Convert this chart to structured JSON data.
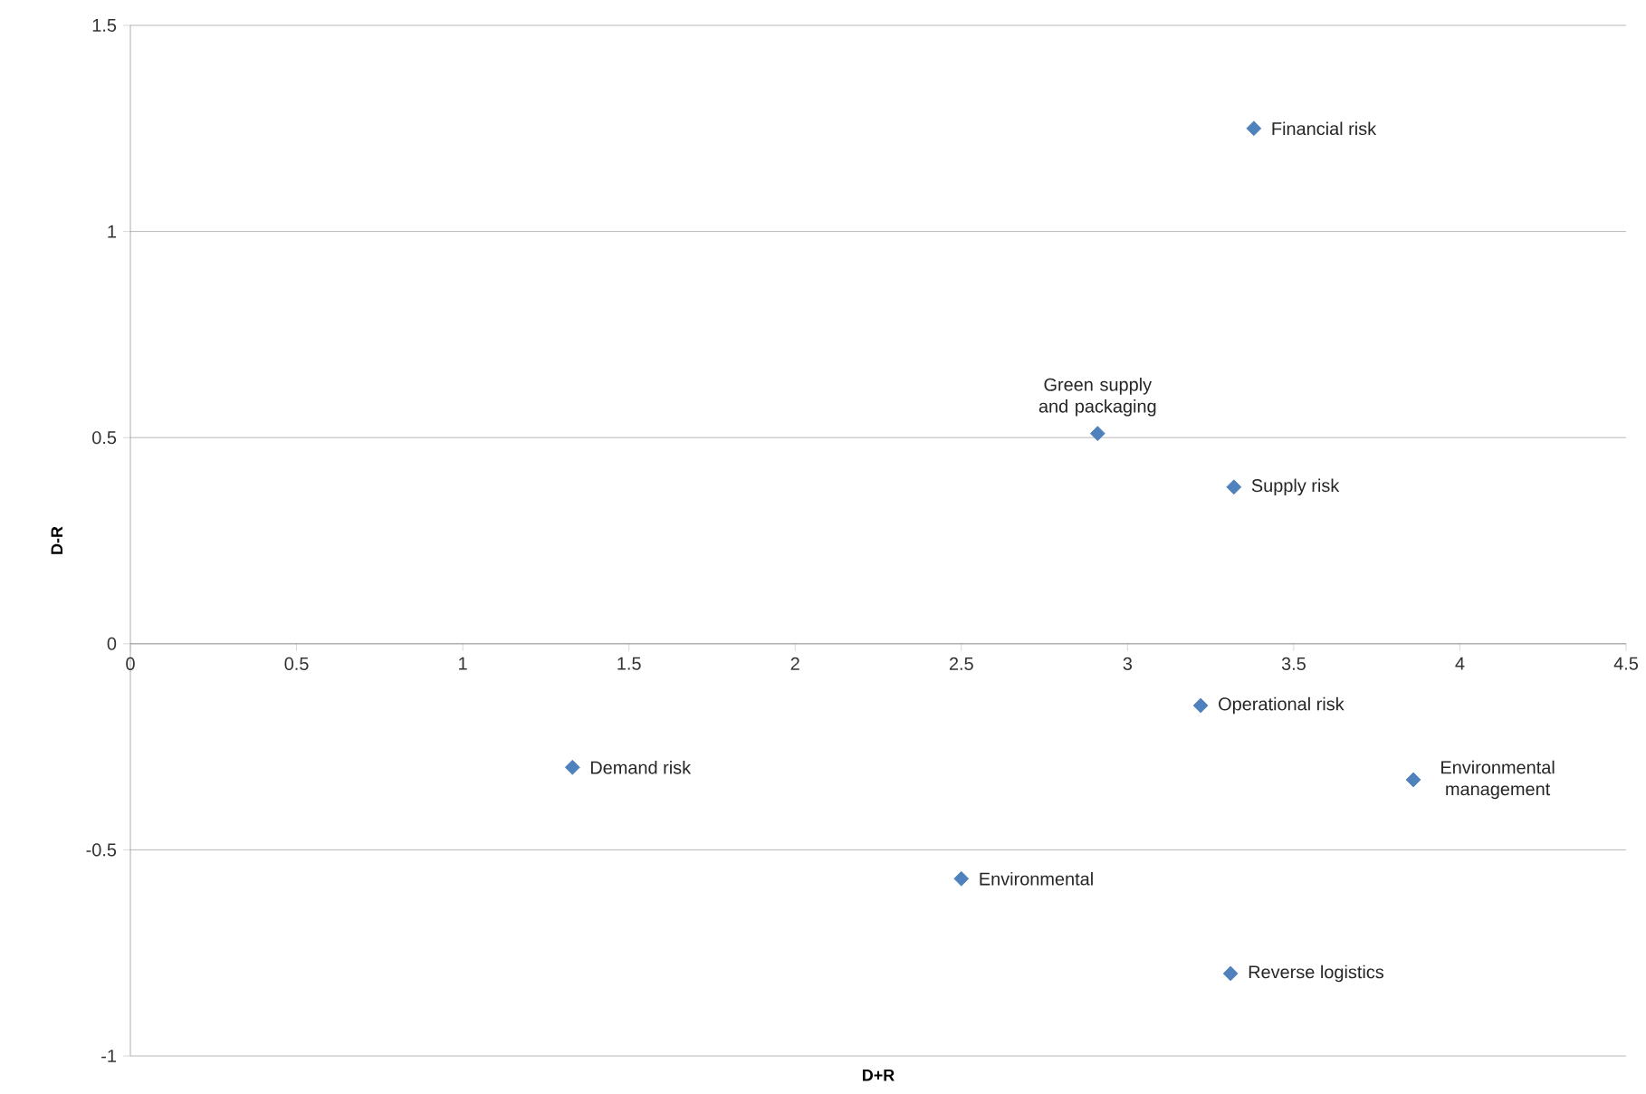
{
  "chart_data": {
    "type": "scatter",
    "xlabel": "D+R",
    "ylabel": "D-R",
    "x": [
      3.38,
      2.91,
      3.32,
      3.22,
      1.33,
      3.86,
      2.5,
      3.31
    ],
    "values": [
      1.25,
      0.51,
      0.38,
      -0.15,
      -0.3,
      -0.33,
      -0.57,
      -0.8
    ],
    "color": "#4f81bd",
    "marker": "diamond",
    "xlim": [
      0,
      4.5
    ],
    "xticks": [
      0,
      0.5,
      1,
      1.5,
      2,
      2.5,
      3,
      3.5,
      4,
      4.5
    ],
    "ylim": [
      -1,
      1.5
    ],
    "yticks": [
      -1,
      -0.5,
      0,
      0.5,
      1,
      1.5
    ],
    "grid": "y",
    "annotations": [
      {
        "text": "Financial risk",
        "x": 3.38,
        "y": 1.25
      },
      {
        "text": "Green supply and packaging",
        "x": 2.91,
        "y": 0.51
      },
      {
        "text": "Supply risk",
        "x": 3.32,
        "y": 0.38
      },
      {
        "text": "Operational risk",
        "x": 3.22,
        "y": -0.15
      },
      {
        "text": "Demand risk",
        "x": 1.33,
        "y": -0.3
      },
      {
        "text": "Environmental management",
        "x": 3.86,
        "y": -0.33
      },
      {
        "text": "Environmental",
        "x": 2.5,
        "y": -0.57
      },
      {
        "text": "Reverse logistics",
        "x": 3.31,
        "y": -0.8
      }
    ]
  }
}
